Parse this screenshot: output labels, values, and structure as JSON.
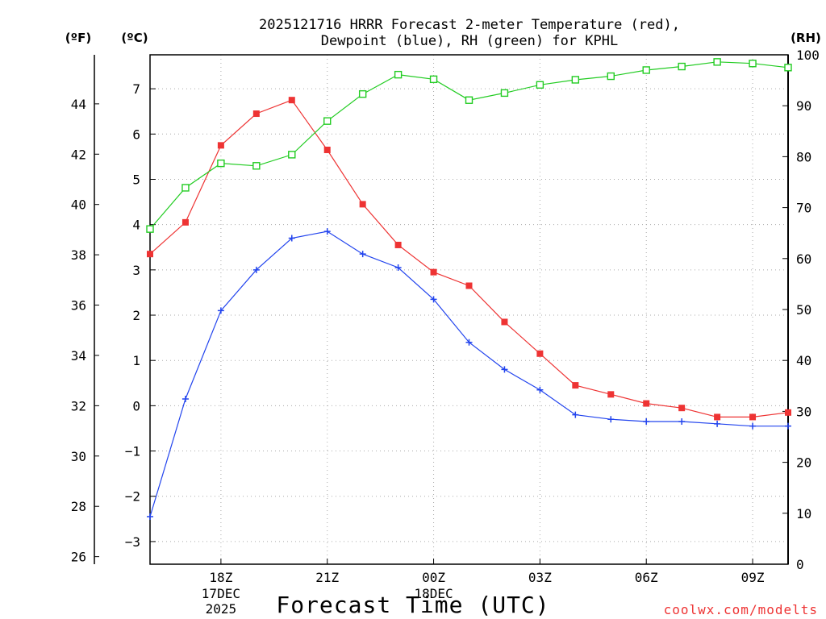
{
  "chart_data": {
    "type": "line",
    "title_line1": "2025121716 HRRR Forecast 2-meter Temperature (red),",
    "title_line2": "Dewpoint (blue), RH (green) for KPHL",
    "xlabel": "Forecast Time (UTC)",
    "credit": "coolwx.com/modelts",
    "unit_f": "(ºF)",
    "unit_c": "(ºC)",
    "unit_rh": "(RH)",
    "x_hours": [
      16,
      17,
      18,
      19,
      20,
      21,
      22,
      23,
      24,
      25,
      26,
      27,
      28,
      29,
      30,
      31,
      32,
      33,
      34
    ],
    "xlim": [
      16,
      34
    ],
    "ylim_c": [
      -3.5,
      7.75
    ],
    "ylim_rh": [
      0,
      100
    ],
    "x_ticks": [
      {
        "hour": 18,
        "label": "18Z",
        "sub1": "17DEC",
        "sub2": "2025"
      },
      {
        "hour": 21,
        "label": "21Z",
        "sub1": "",
        "sub2": ""
      },
      {
        "hour": 24,
        "label": "00Z",
        "sub1": "18DEC",
        "sub2": ""
      },
      {
        "hour": 27,
        "label": "03Z",
        "sub1": "",
        "sub2": ""
      },
      {
        "hour": 30,
        "label": "06Z",
        "sub1": "",
        "sub2": ""
      },
      {
        "hour": 33,
        "label": "09Z",
        "sub1": "",
        "sub2": ""
      }
    ],
    "y_ticks_c": [
      "-3",
      "-2",
      "-1",
      "0",
      "1",
      "2",
      "3",
      "4",
      "5",
      "6",
      "7"
    ],
    "y_ticks_f": [
      "26",
      "28",
      "30",
      "32",
      "34",
      "36",
      "38",
      "40",
      "42",
      "44"
    ],
    "y_ticks_rh": [
      "0",
      "10",
      "20",
      "30",
      "40",
      "50",
      "60",
      "70",
      "80",
      "90",
      "100"
    ],
    "series": [
      {
        "name": "Temperature",
        "unit": "C",
        "color": "#ee3333",
        "marker": "filled-square",
        "values": [
          3.35,
          4.05,
          5.75,
          6.45,
          6.75,
          5.65,
          4.45,
          3.55,
          2.95,
          2.65,
          1.85,
          1.15,
          0.45,
          0.25,
          0.05,
          -0.05,
          -0.25,
          -0.25,
          -0.15
        ]
      },
      {
        "name": "Dewpoint",
        "unit": "C",
        "color": "#2244ee",
        "marker": "plus",
        "values": [
          -2.45,
          0.15,
          2.1,
          3.0,
          3.7,
          3.85,
          3.35,
          3.05,
          2.35,
          1.4,
          0.8,
          0.35,
          -0.2,
          -0.3,
          -0.35,
          -0.35,
          -0.4,
          -0.45,
          -0.45
        ]
      },
      {
        "name": "RH",
        "unit": "%",
        "color": "#22cc22",
        "marker": "open-square",
        "values": [
          65.8,
          73.9,
          78.7,
          78.2,
          80.4,
          87.0,
          92.3,
          96.1,
          95.2,
          91.1,
          92.5,
          94.1,
          95.1,
          95.8,
          97.0,
          97.7,
          98.6,
          98.3,
          97.5
        ]
      }
    ]
  }
}
